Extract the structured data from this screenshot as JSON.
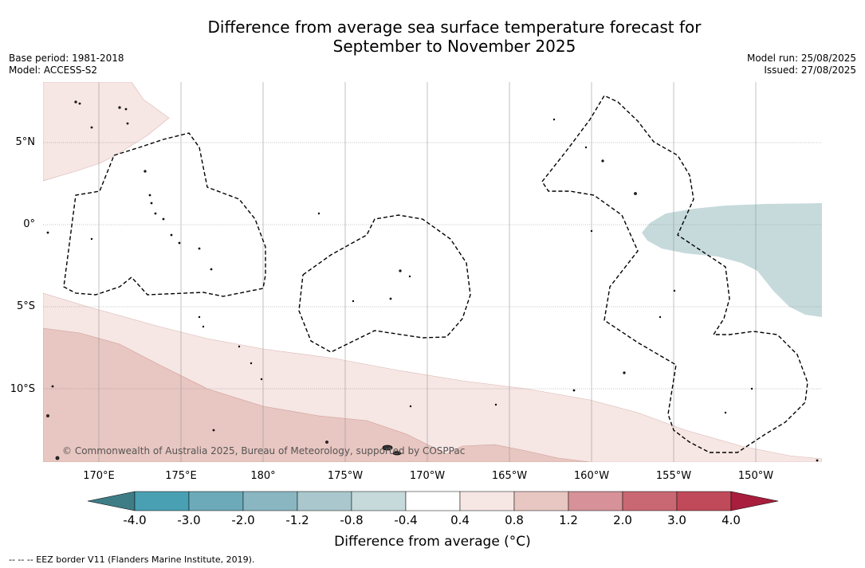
{
  "title_line1": "Difference from average sea surface temperature forecast for",
  "title_line2": "September to November 2025",
  "base_period": "Base period: 1981-2018",
  "model": "Model: ACCESS-S2",
  "model_run": "Model run: 25/08/2025",
  "issued": "Issued: 27/08/2025",
  "lat_labels": [
    "5°N",
    "0°",
    "5°S",
    "10°S"
  ],
  "lon_labels": [
    "170°E",
    "175°E",
    "180°",
    "175°W",
    "170°W",
    "165°W",
    "160°W",
    "155°W",
    "150°W"
  ],
  "copyright": "© Commonwealth of Australia 2025, Bureau of Meteorology, supported by COSPPac",
  "colorbar": {
    "ticks": [
      "-4.0",
      "-3.0",
      "-2.0",
      "-1.2",
      "-0.8",
      "-0.4",
      "0.4",
      "0.8",
      "1.2",
      "2.0",
      "3.0",
      "4.0"
    ],
    "colors": [
      "#4aa0b3",
      "#6caab9",
      "#8ab6c2",
      "#a9c7cc",
      "#c6dadc",
      "#ffffff",
      "#f6e6e4",
      "#e8c6c1",
      "#d69298",
      "#c96873",
      "#c04a5a"
    ],
    "extend_low_color": "#3e7d86",
    "extend_high_color": "#a81e3c",
    "label": "Difference from average (°C)"
  },
  "footnote": "--  --  -- EEZ border V11 (Flanders Marine Institute, 2019)."
}
